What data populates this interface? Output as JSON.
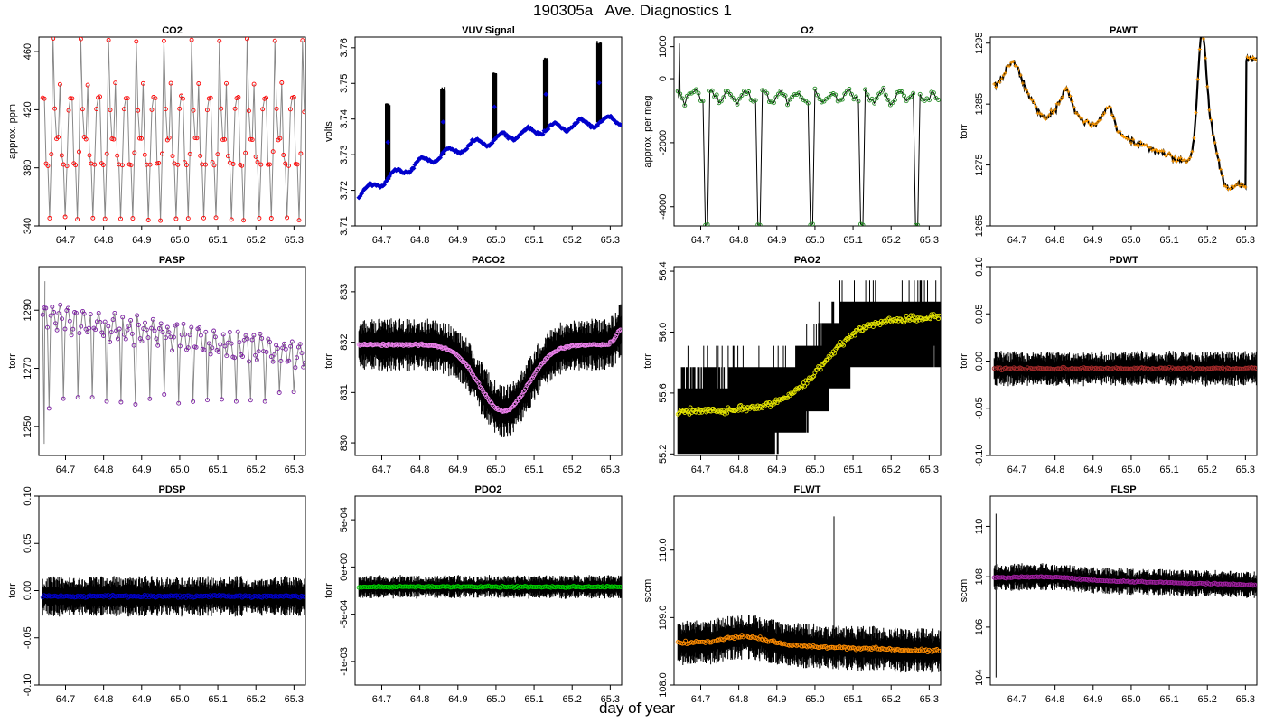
{
  "page": {
    "title": "190305a   Ave. Diagnostics 1",
    "xlabel": "day of year"
  },
  "chart_data": [
    {
      "type": "line",
      "title": "CO2",
      "ylabel": "approx. ppm",
      "xlim": [
        64.63,
        65.33
      ],
      "ylim": [
        340,
        470
      ],
      "yticks": [
        340,
        380,
        420,
        460
      ],
      "ytick_labels": [
        "340",
        "380",
        "420",
        "460"
      ],
      "xticks": [
        64.7,
        64.8,
        64.9,
        65.0,
        65.1,
        65.2,
        65.3
      ],
      "xtick_labels": [
        "64.7",
        "64.8",
        "64.9",
        "65.0",
        "65.1",
        "65.2",
        "65.3"
      ],
      "pattern": "co2",
      "base": 400,
      "raw_color": "#888888",
      "point_color": "#ff0000",
      "point_shape": "circle"
    },
    {
      "type": "line",
      "title": "VUV Signal",
      "ylabel": "volts",
      "xlim": [
        64.63,
        65.33
      ],
      "ylim": [
        3.71,
        3.763
      ],
      "yticks": [
        3.71,
        3.72,
        3.73,
        3.74,
        3.75,
        3.76
      ],
      "ytick_labels": [
        "3.71",
        "3.72",
        "3.73",
        "3.74",
        "3.75",
        "3.76"
      ],
      "xticks": [
        64.7,
        64.8,
        64.9,
        65.0,
        65.1,
        65.2,
        65.3
      ],
      "xtick_labels": [
        "64.7",
        "64.8",
        "64.9",
        "65.0",
        "65.1",
        "65.2",
        "65.3"
      ],
      "pattern": "vuv",
      "raw_color": "#000000",
      "point_color": "#0000cc",
      "point_shape": "diamond"
    },
    {
      "type": "line",
      "title": "O2",
      "ylabel": "approx. per meg",
      "xlim": [
        64.63,
        65.33
      ],
      "ylim": [
        -4600,
        1300
      ],
      "yticks": [
        -4000,
        -2000,
        0,
        1000
      ],
      "ytick_labels": [
        "-4000",
        "-2000",
        "0",
        "1000"
      ],
      "xticks": [
        64.7,
        64.8,
        64.9,
        65.0,
        65.1,
        65.2,
        65.3
      ],
      "xtick_labels": [
        "64.7",
        "64.8",
        "64.9",
        "65.0",
        "65.1",
        "65.2",
        "65.3"
      ],
      "pattern": "o2",
      "raw_color": "#000000",
      "point_color": "#228b22",
      "point_shape": "circle"
    },
    {
      "type": "line",
      "title": "PAWT",
      "ylabel": "torr",
      "xlim": [
        64.63,
        65.33
      ],
      "ylim": [
        1265,
        1296
      ],
      "yticks": [
        1265,
        1275,
        1285,
        1295
      ],
      "ytick_labels": [
        "1265",
        "1275",
        "1285",
        "1295"
      ],
      "xticks": [
        64.7,
        64.8,
        64.9,
        65.0,
        65.1,
        65.2,
        65.3
      ],
      "xtick_labels": [
        "64.7",
        "64.8",
        "64.9",
        "65.0",
        "65.1",
        "65.2",
        "65.3"
      ],
      "pattern": "pawt",
      "raw_color": "#000000",
      "point_color": "#ff9900",
      "point_shape": "plus"
    },
    {
      "type": "line",
      "title": "PASP",
      "ylabel": "torr",
      "xlim": [
        64.63,
        65.33
      ],
      "ylim": [
        1240,
        1305
      ],
      "yticks": [
        1250,
        1270,
        1290
      ],
      "ytick_labels": [
        "1250",
        "1270",
        "1290"
      ],
      "xticks": [
        64.7,
        64.8,
        64.9,
        65.0,
        65.1,
        65.2,
        65.3
      ],
      "xtick_labels": [
        "64.7",
        "64.8",
        "64.9",
        "65.0",
        "65.1",
        "65.2",
        "65.3"
      ],
      "pattern": "pasp",
      "raw_color": "#888888",
      "point_color": "#7b1fa2",
      "point_shape": "circle"
    },
    {
      "type": "line",
      "title": "PACO2",
      "ylabel": "torr",
      "xlim": [
        64.63,
        65.33
      ],
      "ylim": [
        829.75,
        833.5
      ],
      "yticks": [
        830,
        831,
        832,
        833
      ],
      "ytick_labels": [
        "830",
        "831",
        "832",
        "833"
      ],
      "xticks": [
        64.7,
        64.8,
        64.9,
        65.0,
        65.1,
        65.2,
        65.3
      ],
      "xtick_labels": [
        "64.7",
        "64.8",
        "64.9",
        "65.0",
        "65.1",
        "65.2",
        "65.3"
      ],
      "pattern": "paco2",
      "raw_color": "#000000",
      "point_color": "#ee82ee",
      "point_shape": "circle"
    },
    {
      "type": "line",
      "title": "PAO2",
      "ylabel": "torr",
      "xlim": [
        64.63,
        65.33
      ],
      "ylim": [
        55.19,
        56.43
      ],
      "yticks": [
        55.2,
        55.6,
        56.0,
        56.4
      ],
      "ytick_labels": [
        "55.2",
        "55.6",
        "56.0",
        "56.4"
      ],
      "xticks": [
        64.7,
        64.8,
        64.9,
        65.0,
        65.1,
        65.2,
        65.3
      ],
      "xtick_labels": [
        "64.7",
        "64.8",
        "64.9",
        "65.0",
        "65.1",
        "65.2",
        "65.3"
      ],
      "pattern": "pao2",
      "raw_color": "#000000",
      "point_color": "#e6e600",
      "point_shape": "circle"
    },
    {
      "type": "line",
      "title": "PDWT",
      "ylabel": "torr",
      "xlim": [
        64.63,
        65.33
      ],
      "ylim": [
        -0.1,
        0.1
      ],
      "yticks": [
        -0.1,
        -0.05,
        0,
        0.05,
        0.1
      ],
      "ytick_labels": [
        "-0.10",
        "-0.05",
        "0.00",
        "0.05",
        "0.10"
      ],
      "xticks": [
        64.7,
        64.8,
        64.9,
        65.0,
        65.1,
        65.2,
        65.3
      ],
      "xtick_labels": [
        "64.7",
        "64.8",
        "64.9",
        "65.0",
        "65.1",
        "65.2",
        "65.3"
      ],
      "pattern": "noise",
      "base": -0.008,
      "amp": 0.012,
      "raw_color": "#000000",
      "point_color": "#a52a2a",
      "point_shape": "circle"
    },
    {
      "type": "line",
      "title": "PDSP",
      "ylabel": "torr",
      "xlim": [
        64.63,
        65.33
      ],
      "ylim": [
        -0.1,
        0.1
      ],
      "yticks": [
        -0.1,
        -0.05,
        0,
        0.05,
        0.1
      ],
      "ytick_labels": [
        "-0.10",
        "-0.05",
        "0.00",
        "0.05",
        "0.10"
      ],
      "xticks": [
        64.7,
        64.8,
        64.9,
        65.0,
        65.1,
        65.2,
        65.3
      ],
      "xtick_labels": [
        "64.7",
        "64.8",
        "64.9",
        "65.0",
        "65.1",
        "65.2",
        "65.3"
      ],
      "pattern": "noise",
      "base": -0.006,
      "amp": 0.014,
      "raw_color": "#000000",
      "point_color": "#0000cc",
      "point_shape": "circle"
    },
    {
      "type": "line",
      "title": "PDO2",
      "ylabel": "torr",
      "xlim": [
        64.63,
        65.33
      ],
      "ylim": [
        -0.00125,
        0.00075
      ],
      "yticks": [
        -0.001,
        -0.0005,
        0,
        0.0005
      ],
      "ytick_labels": [
        "-1e-03",
        "-5e-04",
        "0e+00",
        "5e-04"
      ],
      "xticks": [
        64.7,
        64.8,
        64.9,
        65.0,
        65.1,
        65.2,
        65.3
      ],
      "xtick_labels": [
        "64.7",
        "64.8",
        "64.9",
        "65.0",
        "65.1",
        "65.2",
        "65.3"
      ],
      "pattern": "noise",
      "base": -0.00021,
      "amp": 8e-05,
      "raw_color": "#000000",
      "point_color": "#00cc00",
      "point_shape": "circle"
    },
    {
      "type": "line",
      "title": "FLWT",
      "ylabel": "sccm",
      "xlim": [
        64.63,
        65.33
      ],
      "ylim": [
        108,
        110.8
      ],
      "yticks": [
        108,
        109,
        110
      ],
      "ytick_labels": [
        "108.0",
        "109.0",
        "110.0"
      ],
      "xticks": [
        64.7,
        64.8,
        64.9,
        65.0,
        65.1,
        65.2,
        65.3
      ],
      "xtick_labels": [
        "64.7",
        "64.8",
        "64.9",
        "65.0",
        "65.1",
        "65.2",
        "65.3"
      ],
      "pattern": "flwt",
      "raw_color": "#000000",
      "point_color": "#ff8c00",
      "point_shape": "circle"
    },
    {
      "type": "line",
      "title": "FLSP",
      "ylabel": "sccm",
      "xlim": [
        64.63,
        65.33
      ],
      "ylim": [
        103.7,
        111.2
      ],
      "yticks": [
        104,
        106,
        108,
        110
      ],
      "ytick_labels": [
        "104",
        "106",
        "108",
        "110"
      ],
      "xticks": [
        64.7,
        64.8,
        64.9,
        65.0,
        65.1,
        65.2,
        65.3
      ],
      "xtick_labels": [
        "64.7",
        "64.8",
        "64.9",
        "65.0",
        "65.1",
        "65.2",
        "65.3"
      ],
      "pattern": "flsp",
      "raw_color": "#000000",
      "point_color": "#a020a0",
      "point_shape": "circle"
    }
  ]
}
